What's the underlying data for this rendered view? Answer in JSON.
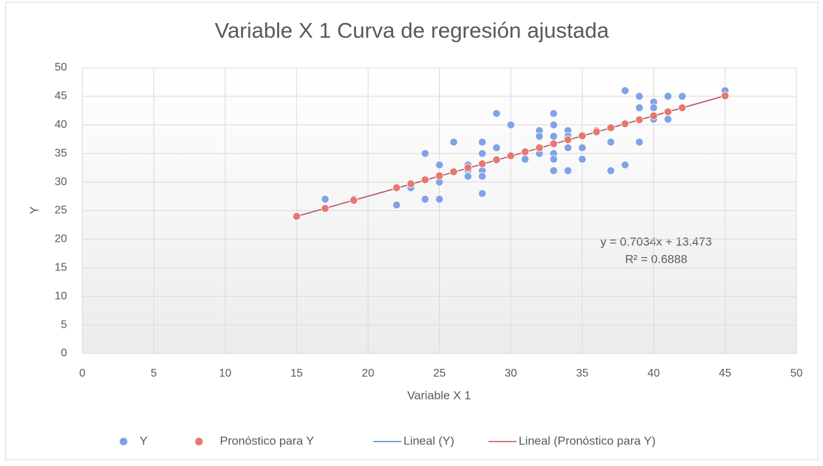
{
  "chart_data": {
    "type": "scatter",
    "title": "Variable  X 1 Curva de regresión ajustada",
    "x_label": "Variable  X 1",
    "y_label": "Y",
    "annotations": [
      "y = 0.7034x + 13.473",
      "R² = 0.6888"
    ],
    "xlim": [
      0,
      50
    ],
    "xticks": [
      0,
      5,
      10,
      15,
      20,
      25,
      30,
      35,
      40,
      45,
      50
    ],
    "ylim": [
      0,
      50
    ],
    "yticks": [
      0,
      5,
      10,
      15,
      20,
      25,
      30,
      35,
      40,
      45,
      50
    ],
    "grid": true,
    "legend": "bottom",
    "series": [
      {
        "name": "Y",
        "type": "scatter",
        "color": "#7fa3e8",
        "x": [
          17,
          19,
          22,
          22,
          23,
          24,
          24,
          25,
          25,
          25,
          26,
          27,
          27,
          27,
          28,
          28,
          28,
          28,
          28,
          29,
          29,
          30,
          31,
          32,
          32,
          32,
          33,
          33,
          33,
          33,
          33,
          33,
          34,
          34,
          34,
          34,
          35,
          35,
          36,
          37,
          37,
          38,
          38,
          39,
          39,
          39,
          40,
          40,
          40,
          41,
          41,
          42,
          45
        ],
        "values": [
          27,
          27,
          26,
          29,
          29,
          35,
          27,
          33,
          30,
          27,
          37,
          33,
          32,
          31,
          37,
          35,
          32,
          31,
          28,
          42,
          36,
          40,
          34,
          39,
          38,
          35,
          42,
          40,
          38,
          35,
          34,
          32,
          39,
          38,
          36,
          32,
          36,
          34,
          39,
          37,
          32,
          46,
          33,
          45,
          43,
          37,
          44,
          43,
          41,
          45,
          41,
          45,
          46
        ]
      },
      {
        "name": "Pronóstico para Y",
        "type": "scatter",
        "color": "#e8776f",
        "x": [
          15,
          17,
          19,
          22,
          23,
          24,
          25,
          26,
          27,
          28,
          29,
          30,
          31,
          32,
          33,
          34,
          35,
          36,
          37,
          38,
          39,
          40,
          41,
          42,
          45
        ],
        "values": [
          24.0,
          25.4,
          26.8,
          29.0,
          29.7,
          30.4,
          31.1,
          31.8,
          32.5,
          33.2,
          33.9,
          34.6,
          35.3,
          36.0,
          36.7,
          37.4,
          38.1,
          38.8,
          39.5,
          40.2,
          40.9,
          41.6,
          42.3,
          43.0,
          45.1
        ]
      },
      {
        "name": "Lineal (Y)",
        "type": "line",
        "color": "#4a7fd6",
        "x": [
          15,
          45
        ],
        "values": [
          24.0,
          45.1
        ]
      },
      {
        "name": "Lineal (Pronóstico para Y)",
        "type": "line",
        "color": "#c0504d",
        "x": [
          15,
          45
        ],
        "values": [
          24.0,
          45.1
        ]
      }
    ]
  }
}
